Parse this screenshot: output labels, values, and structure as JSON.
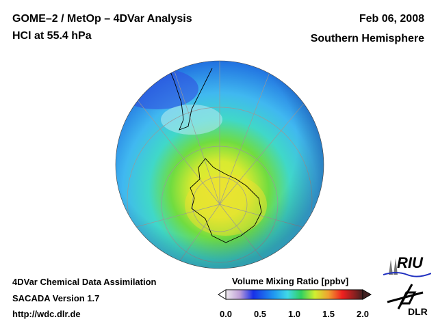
{
  "header": {
    "title_line1": "GOME–2 / MetOp – 4DVar Analysis",
    "title_line2": "HCl at 55.4 hPa",
    "date": "Feb 06, 2008",
    "region": "Southern Hemisphere"
  },
  "footer": {
    "line1": "4DVar Chemical Data Assimilation",
    "line2": "SACADA Version 1.7",
    "url": "http://wdc.dlr.de"
  },
  "colorbar": {
    "label": "Volume Mixing Ratio [ppbv]",
    "ticks": [
      "0.0",
      "0.5",
      "1.0",
      "1.5",
      "2.0"
    ],
    "range": [
      0.0,
      2.0
    ],
    "colors": [
      "#e8e4e8",
      "#c0a8d8",
      "#2030e0",
      "#1890f0",
      "#40d8f0",
      "#30d060",
      "#c8f030",
      "#f0f020",
      "#f0a030",
      "#f02020",
      "#c01010",
      "#401818"
    ]
  },
  "logos": {
    "riu": "RIU",
    "dlr": "DLR"
  }
}
